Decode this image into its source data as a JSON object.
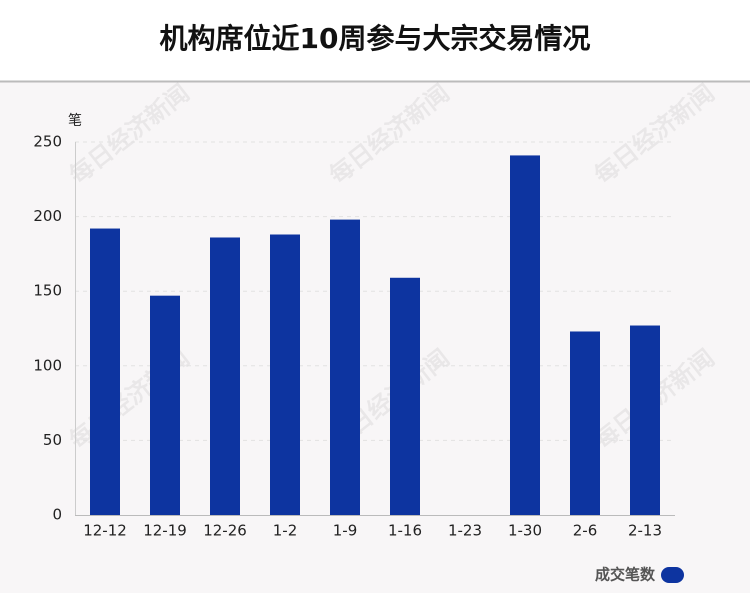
{
  "chart_data": {
    "type": "bar",
    "title": "机构席位近10周参与大宗交易情况",
    "y_unit": "笔",
    "categories": [
      "12-12",
      "12-19",
      "12-26",
      "1-2",
      "1-9",
      "1-16",
      "1-23",
      "1-30",
      "2-6",
      "2-13"
    ],
    "series": [
      {
        "name": "成交笔数",
        "color": "#0d34a0",
        "values": [
          192,
          147,
          186,
          188,
          198,
          159,
          0,
          241,
          123,
          127
        ]
      }
    ],
    "ylim": [
      0,
      250
    ],
    "yticks": [
      0,
      50,
      100,
      150,
      200,
      250
    ],
    "grid": true,
    "legend": "bottom-right",
    "watermark": "每日经济新闻"
  }
}
